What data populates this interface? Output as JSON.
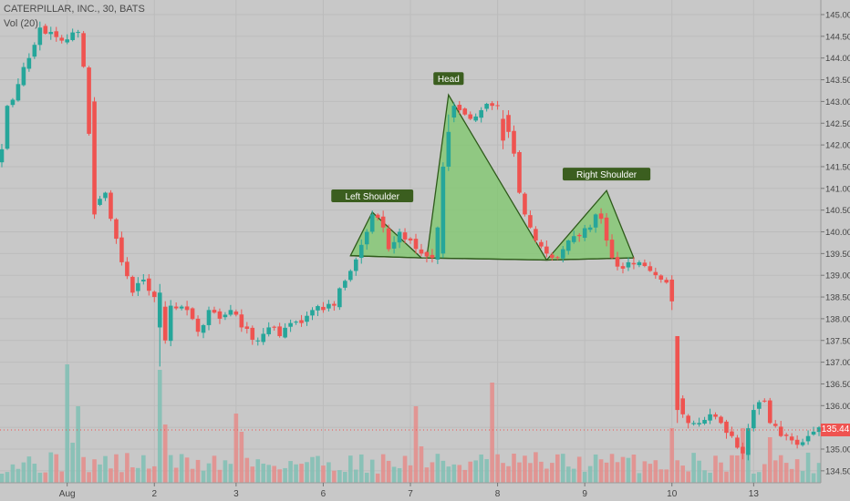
{
  "header": {
    "title": "CATERPILLAR, INC., 30, BATS",
    "volume_label": "Vol (20)"
  },
  "price_tag": "135.44",
  "colors": {
    "background": "#c8c8c8",
    "up": "#26a69a",
    "down": "#ef5350",
    "pattern_fill": "#7ec86b",
    "label_bg": "#3b5e1f",
    "price_tag": "#ef5350"
  },
  "chart_data": {
    "type": "candlestick",
    "title": "CATERPILLAR, INC., 30, BATS",
    "yaxis": {
      "side": "right",
      "ylim": [
        134.1,
        145.3
      ],
      "ticks": [
        "134.50",
        "135.00",
        "135.50",
        "136.00",
        "136.50",
        "137.00",
        "137.50",
        "138.00",
        "138.50",
        "139.00",
        "139.50",
        "140.00",
        "140.50",
        "141.00",
        "141.50",
        "142.00",
        "142.50",
        "143.00",
        "143.50",
        "144.00",
        "144.50",
        "145.00"
      ]
    },
    "xaxis": {
      "labels": [
        "Aug",
        "2",
        "3",
        "6",
        "7",
        "8",
        "9",
        "10",
        "13"
      ]
    },
    "grid": true,
    "segments": [
      {
        "from": 0,
        "start": 141.9,
        "pts": [
          [
            1,
            142.9
          ],
          [
            3,
            143.4
          ],
          [
            5,
            144.0
          ],
          [
            7,
            144.7
          ],
          [
            11,
            144.4
          ],
          [
            14,
            144.6
          ],
          [
            15,
            143.8
          ],
          [
            17,
            140.6
          ],
          [
            19,
            140.9
          ],
          [
            20,
            140.3
          ],
          [
            22,
            139.3
          ],
          [
            24,
            138.6
          ],
          [
            26,
            138.9
          ],
          [
            28,
            138.5
          ],
          [
            29,
            138.3
          ],
          [
            30,
            137.5
          ],
          [
            31,
            138.3
          ],
          [
            34,
            138.2
          ],
          [
            36,
            137.7
          ],
          [
            38,
            138.2
          ],
          [
            40,
            138.0
          ],
          [
            42,
            138.2
          ],
          [
            44,
            137.8
          ],
          [
            47,
            137.5
          ],
          [
            49,
            137.8
          ],
          [
            51,
            137.6
          ],
          [
            53,
            137.9
          ],
          [
            55,
            137.9
          ],
          [
            57,
            138.2
          ],
          [
            59,
            138.2
          ],
          [
            61,
            138.3
          ],
          [
            62,
            138.7
          ],
          [
            64,
            139.1
          ],
          [
            66,
            139.7
          ],
          [
            67,
            140.0
          ],
          [
            68,
            140.4
          ],
          [
            70,
            140.1
          ],
          [
            71,
            139.6
          ],
          [
            73,
            140.0
          ],
          [
            75,
            139.8
          ],
          [
            77,
            139.5
          ],
          [
            79,
            139.4
          ],
          [
            80,
            140.1
          ],
          [
            81,
            142.2
          ],
          [
            82,
            142.6
          ],
          [
            83,
            142.9
          ],
          [
            84,
            142.8
          ],
          [
            85,
            142.7
          ],
          [
            86,
            142.6
          ],
          [
            88,
            142.8
          ],
          [
            90,
            142.9
          ],
          [
            91,
            142.9
          ],
          [
            92,
            142.7
          ],
          [
            93,
            142.3
          ],
          [
            94,
            141.8
          ],
          [
            95,
            140.9
          ],
          [
            96,
            140.4
          ],
          [
            97,
            140.1
          ],
          [
            98,
            139.8
          ],
          [
            100,
            139.5
          ],
          [
            101,
            139.4
          ],
          [
            102,
            139.4
          ],
          [
            103,
            139.6
          ],
          [
            104,
            139.8
          ],
          [
            106,
            139.9
          ],
          [
            108,
            140.1
          ],
          [
            109,
            140.4
          ],
          [
            110,
            140.3
          ],
          [
            111,
            139.8
          ],
          [
            112,
            139.4
          ],
          [
            113,
            139.2
          ],
          [
            115,
            139.3
          ],
          [
            117,
            139.3
          ],
          [
            119,
            139.1
          ],
          [
            121,
            138.9
          ],
          [
            123,
            138.8
          ]
        ],
        "seed": 7,
        "noise": 0.22
      },
      {
        "from": 123,
        "start": 138.6,
        "pts": [
          [
            124,
            136.2
          ],
          [
            126,
            135.6
          ],
          [
            128,
            135.6
          ],
          [
            130,
            135.8
          ],
          [
            132,
            135.6
          ],
          [
            134,
            135.3
          ],
          [
            136,
            134.9
          ],
          [
            138,
            135.9
          ],
          [
            140,
            136.1
          ],
          [
            141,
            135.6
          ],
          [
            143,
            135.3
          ],
          [
            145,
            135.2
          ],
          [
            146,
            135.1
          ],
          [
            148,
            135.3
          ],
          [
            149,
            135.4
          ],
          [
            150,
            135.5
          ]
        ],
        "seed": 19,
        "noise": 0.2
      }
    ],
    "big_moves": [
      {
        "i": 17,
        "open": 143.0,
        "close": 140.4,
        "high": 143.1,
        "low": 140.3
      },
      {
        "i": 29,
        "open": 137.8,
        "close": 138.6,
        "high": 138.8,
        "low": 136.9
      },
      {
        "i": 81,
        "open": 139.5,
        "close": 141.5,
        "high": 141.6,
        "low": 139.4
      },
      {
        "i": 82,
        "open": 141.5,
        "close": 142.3,
        "high": 142.7,
        "low": 141.4
      },
      {
        "i": 92,
        "open": 142.6,
        "close": 142.1,
        "high": 142.8,
        "low": 141.9
      },
      {
        "i": 123,
        "open": 138.9,
        "close": 138.4,
        "high": 139.0,
        "low": 138.2
      },
      {
        "i": 124,
        "open": 137.6,
        "close": 135.9,
        "high": 137.6,
        "low": 135.6
      }
    ],
    "volume": {
      "base_seed": 31,
      "spikes": [
        [
          12,
          0.65
        ],
        [
          13,
          0.22
        ],
        [
          14,
          0.42
        ],
        [
          29,
          0.62
        ],
        [
          30,
          0.32
        ],
        [
          43,
          0.38
        ],
        [
          44,
          0.28
        ],
        [
          76,
          0.42
        ],
        [
          77,
          0.2
        ],
        [
          90,
          0.55
        ],
        [
          123,
          0.3
        ],
        [
          136,
          0.3
        ],
        [
          137,
          0.28
        ],
        [
          141,
          0.25
        ]
      ]
    },
    "pattern": {
      "name": "Head and Shoulders",
      "neckline": [
        [
          64,
          139.45
        ],
        [
          77,
          139.4
        ],
        [
          100,
          139.35
        ],
        [
          116,
          139.4
        ]
      ],
      "shapes": [
        {
          "label": "Left Shoulder",
          "pts": [
            [
              64,
              139.45
            ],
            [
              68,
              140.45
            ],
            [
              77,
              139.4
            ]
          ]
        },
        {
          "label": "Head",
          "pts": [
            [
              78,
              139.4
            ],
            [
              82,
              143.15
            ],
            [
              100,
              139.35
            ]
          ]
        },
        {
          "label": "Right Shoulder",
          "pts": [
            [
              100,
              139.35
            ],
            [
              111,
              140.95
            ],
            [
              116,
              139.4
            ]
          ]
        }
      ]
    },
    "current_price": 135.44
  }
}
